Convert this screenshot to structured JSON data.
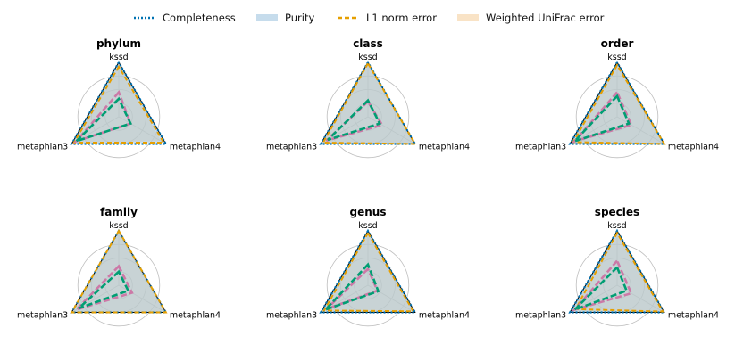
{
  "chart_data": {
    "type": "radar",
    "axes": [
      "kssd",
      "metaphlan3",
      "metaphlan4"
    ],
    "legend": {
      "placement": "top-center",
      "entries": [
        {
          "name": "Completeness",
          "color": "#0072B2",
          "style": "dotted-line"
        },
        {
          "name": "Purity",
          "color": "#c6dcec",
          "style": "fill"
        },
        {
          "name": "L1 norm error",
          "color": "#E69F00",
          "style": "dashed-line"
        },
        {
          "name": "Weighted UniFrac error",
          "color": "#f9e3c6",
          "style": "fill"
        }
      ]
    },
    "overlay_series": [
      {
        "name": "",
        "color": "#009E73",
        "style": "dashed"
      },
      {
        "name": "",
        "color": "#CC79A7",
        "style": "dashed"
      }
    ],
    "rlim": [
      0,
      1
    ],
    "grid": true,
    "panels": [
      {
        "title": "phylum",
        "completeness": [
          1.0,
          1.0,
          1.0
        ],
        "purity": [
          1.0,
          1.0,
          0.95
        ],
        "l1_norm_error": [
          0.92,
          0.95,
          0.95
        ],
        "weighted_unifrac_error": [
          0.96,
          0.96,
          0.9
        ],
        "green": [
          0.33,
          0.9,
          0.25
        ],
        "pink": [
          0.45,
          0.9,
          0.25
        ]
      },
      {
        "title": "class",
        "completeness": [
          1.0,
          1.0,
          1.0
        ],
        "purity": [
          1.0,
          0.98,
          1.0
        ],
        "l1_norm_error": [
          0.98,
          0.95,
          1.0
        ],
        "weighted_unifrac_error": [
          1.0,
          1.0,
          1.0
        ],
        "green": [
          0.3,
          0.85,
          0.25
        ],
        "pink": [
          0.28,
          0.88,
          0.3
        ]
      },
      {
        "title": "order",
        "completeness": [
          1.0,
          1.0,
          1.0
        ],
        "purity": [
          1.0,
          1.0,
          1.0
        ],
        "l1_norm_error": [
          0.95,
          0.93,
          1.0
        ],
        "weighted_unifrac_error": [
          1.0,
          1.0,
          1.0
        ],
        "green": [
          0.38,
          0.9,
          0.25
        ],
        "pink": [
          0.45,
          0.9,
          0.3
        ]
      },
      {
        "title": "family",
        "completeness": [
          1.0,
          1.0,
          1.0
        ],
        "purity": [
          1.0,
          1.0,
          1.0
        ],
        "l1_norm_error": [
          1.0,
          1.0,
          1.0
        ],
        "weighted_unifrac_error": [
          1.0,
          1.0,
          1.0
        ],
        "green": [
          0.25,
          0.85,
          0.2
        ],
        "pink": [
          0.35,
          0.9,
          0.28
        ]
      },
      {
        "title": "genus",
        "completeness": [
          1.0,
          1.0,
          1.0
        ],
        "purity": [
          1.0,
          1.0,
          1.0
        ],
        "l1_norm_error": [
          0.96,
          0.93,
          0.96
        ],
        "weighted_unifrac_error": [
          1.0,
          1.0,
          1.0
        ],
        "green": [
          0.38,
          0.9,
          0.22
        ],
        "pink": [
          0.3,
          0.88,
          0.2
        ]
      },
      {
        "title": "species",
        "completeness": [
          1.0,
          1.0,
          1.0
        ],
        "purity": [
          1.0,
          1.0,
          1.0
        ],
        "l1_norm_error": [
          0.96,
          0.88,
          0.97
        ],
        "weighted_unifrac_error": [
          1.0,
          1.0,
          1.0
        ],
        "green": [
          0.33,
          0.9,
          0.2
        ],
        "pink": [
          0.45,
          0.9,
          0.3
        ]
      }
    ]
  }
}
